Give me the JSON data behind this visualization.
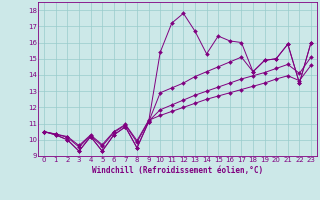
{
  "xlabel": "Windchill (Refroidissement éolien,°C)",
  "xlim": [
    -0.5,
    23.5
  ],
  "ylim": [
    9,
    18.5
  ],
  "xticks": [
    0,
    1,
    2,
    3,
    4,
    5,
    6,
    7,
    8,
    9,
    10,
    11,
    12,
    13,
    14,
    15,
    16,
    17,
    18,
    19,
    20,
    21,
    22,
    23
  ],
  "yticks": [
    9,
    10,
    11,
    12,
    13,
    14,
    15,
    16,
    17,
    18
  ],
  "bg_color": "#cce8e8",
  "line_color": "#800080",
  "grid_color": "#99cccc",
  "series_zigzag": [
    10.5,
    10.3,
    10.0,
    9.3,
    10.2,
    9.3,
    10.3,
    10.8,
    9.5,
    11.1,
    15.4,
    17.2,
    17.8,
    16.7,
    15.3,
    16.4,
    16.1,
    16.0,
    14.2,
    14.9,
    15.0,
    15.9,
    13.5,
    16.0
  ],
  "series_trend1": [
    10.5,
    10.3,
    10.0,
    9.3,
    10.2,
    9.3,
    10.3,
    10.8,
    9.5,
    11.1,
    12.9,
    13.2,
    13.5,
    13.9,
    14.2,
    14.5,
    14.8,
    15.1,
    14.2,
    14.9,
    15.0,
    15.9,
    13.5,
    16.0
  ],
  "series_trend2": [
    10.5,
    10.35,
    10.15,
    9.55,
    10.25,
    9.6,
    10.45,
    10.9,
    9.85,
    11.15,
    11.85,
    12.15,
    12.45,
    12.75,
    13.0,
    13.25,
    13.5,
    13.75,
    13.95,
    14.15,
    14.4,
    14.65,
    14.1,
    15.1
  ],
  "series_trend3": [
    10.5,
    10.35,
    10.2,
    9.65,
    10.3,
    9.7,
    10.5,
    10.95,
    9.95,
    11.2,
    11.5,
    11.75,
    12.0,
    12.25,
    12.5,
    12.7,
    12.9,
    13.1,
    13.3,
    13.5,
    13.75,
    13.95,
    13.65,
    14.6
  ]
}
